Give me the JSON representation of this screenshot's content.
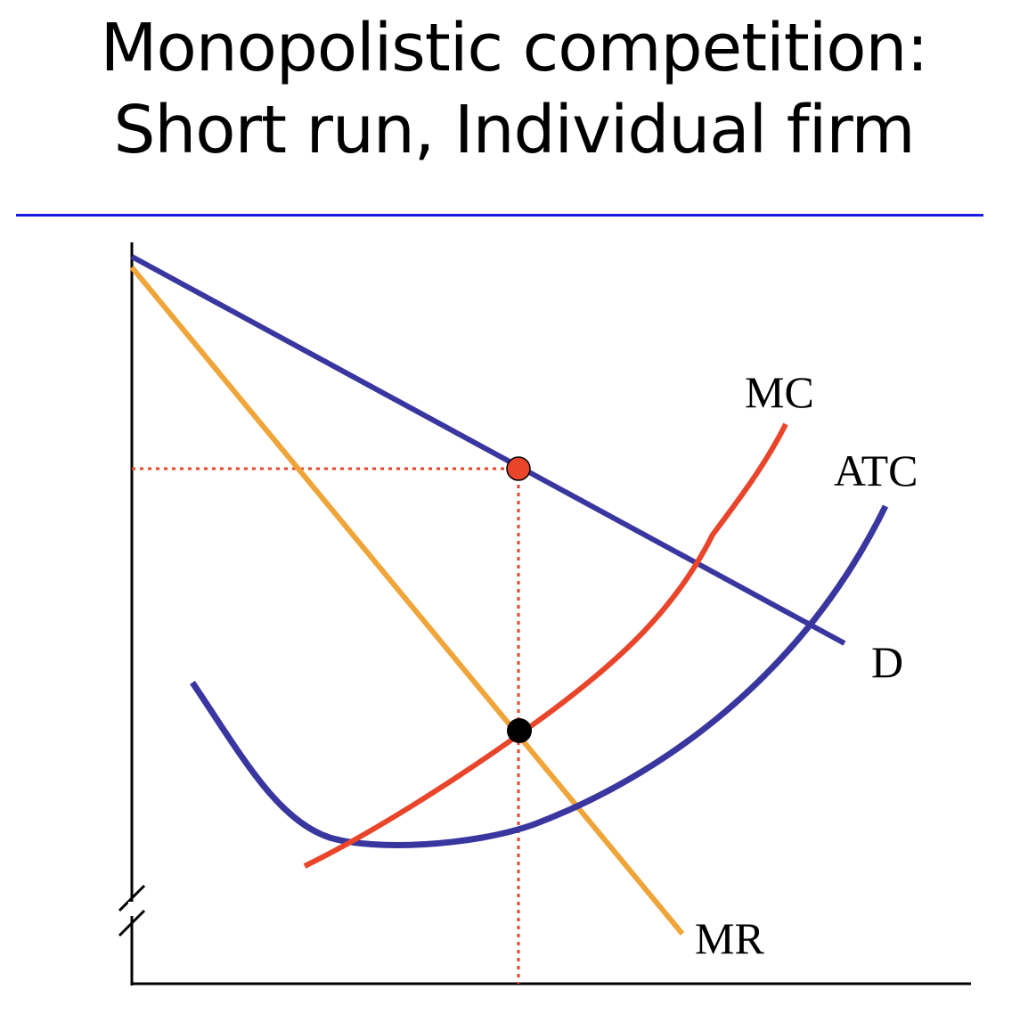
{
  "title": {
    "line1": "Monopolistic competition:",
    "line2": "Short run, Individual firm"
  },
  "labels": {
    "mc": "MC",
    "atc": "ATC",
    "demand": "D",
    "mr": "MR"
  },
  "colors": {
    "title_rule": "#1a1ae0",
    "demand": "#3a36a0",
    "atc": "#3a36a0",
    "mc": "#e8452a",
    "mr": "#f0a53a",
    "guide": "#e8452a",
    "axis": "#000000",
    "price_point": "#e8452a",
    "optimum_point": "#000000"
  }
}
